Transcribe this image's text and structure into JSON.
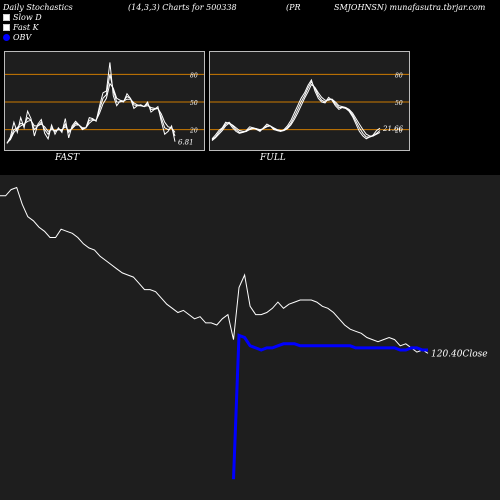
{
  "header": {
    "title": "Daily Stochastics",
    "params": "(14,3,3) Charts for 500338",
    "company": "(PR",
    "source": "SMJOHNSN) munafasutra.tbrjar.com"
  },
  "legend": {
    "slow": "Slow  D",
    "fast": "Fast K",
    "obv": "OBV"
  },
  "colors": {
    "background": "#000000",
    "panel_bg": "#1e1e1e",
    "grid": "#cc7a00",
    "stoch_line": "#ffffff",
    "obv_line": "#0000ff"
  },
  "chart_data": [
    {
      "type": "line",
      "label": "FAST",
      "ylim": [
        0,
        100
      ],
      "levels": [
        80,
        50,
        20
      ],
      "level_labels": [
        "80",
        "50",
        "20"
      ],
      "last_value_label": "6.81",
      "x": [
        0,
        1,
        2,
        3,
        4,
        5,
        6,
        7,
        8,
        9,
        10,
        11,
        12,
        13,
        14,
        15,
        16,
        17,
        18,
        19,
        20,
        21,
        22,
        23,
        24,
        25,
        26,
        27,
        28,
        29,
        30,
        31,
        32,
        33,
        34,
        35,
        36,
        37,
        38,
        39,
        40,
        41,
        42,
        43,
        44,
        45,
        46,
        47,
        48,
        49
      ],
      "series": [
        {
          "values": [
            5,
            12,
            28,
            17,
            33,
            22,
            40,
            32,
            13,
            26,
            31,
            16,
            10,
            25,
            15,
            22,
            17,
            32,
            11,
            24,
            29,
            25,
            20,
            22,
            33,
            32,
            29,
            46,
            60,
            62,
            93,
            57,
            46,
            51,
            50,
            59,
            54,
            43,
            46,
            47,
            45,
            50,
            39,
            42,
            45,
            29,
            15,
            18,
            24,
            6.81
          ]
        },
        {
          "values": [
            5,
            10,
            20,
            22,
            27,
            25,
            33,
            30,
            20,
            24,
            28,
            20,
            15,
            22,
            18,
            20,
            19,
            26,
            17,
            22,
            27,
            25,
            21,
            22,
            30,
            31,
            30,
            42,
            54,
            58,
            80,
            63,
            50,
            50,
            51,
            56,
            54,
            47,
            46,
            46,
            45,
            48,
            42,
            42,
            43,
            33,
            22,
            20,
            22,
            13
          ]
        },
        {
          "values": [
            6,
            9,
            17,
            21,
            24,
            26,
            29,
            30,
            24,
            24,
            26,
            23,
            18,
            20,
            19,
            20,
            20,
            23,
            19,
            21,
            25,
            25,
            22,
            22,
            27,
            30,
            30,
            38,
            48,
            54,
            70,
            65,
            54,
            52,
            51,
            53,
            53,
            49,
            47,
            46,
            45,
            46,
            44,
            43,
            43,
            37,
            28,
            23,
            22,
            17
          ]
        }
      ]
    },
    {
      "type": "line",
      "label": "FULL",
      "ylim": [
        0,
        100
      ],
      "levels": [
        80,
        50,
        20
      ],
      "level_labels": [
        "80",
        "50",
        "20"
      ],
      "last_value_label": "21.66",
      "x": [
        0,
        1,
        2,
        3,
        4,
        5,
        6,
        7,
        8,
        9,
        10,
        11,
        12,
        13,
        14,
        15,
        16,
        17,
        18,
        19,
        20,
        21,
        22,
        23,
        24,
        25,
        26,
        27,
        28,
        29,
        30,
        31,
        32,
        33,
        34,
        35,
        36,
        37,
        38,
        39,
        40,
        41,
        42,
        43,
        44,
        45,
        46,
        47,
        48,
        49
      ],
      "series": [
        {
          "values": [
            10,
            14,
            19,
            22,
            28,
            27,
            22,
            18,
            16,
            17,
            19,
            23,
            22,
            20,
            18,
            22,
            26,
            24,
            20,
            19,
            18,
            20,
            24,
            30,
            38,
            46,
            54,
            60,
            68,
            74,
            62,
            54,
            50,
            49,
            55,
            52,
            46,
            42,
            44,
            43,
            40,
            34,
            26,
            18,
            13,
            10,
            12,
            14,
            19,
            21.66
          ]
        },
        {
          "values": [
            9,
            12,
            17,
            21,
            26,
            28,
            24,
            20,
            17,
            17,
            18,
            21,
            22,
            21,
            19,
            21,
            24,
            24,
            21,
            19,
            18,
            19,
            22,
            27,
            34,
            42,
            50,
            57,
            65,
            72,
            65,
            57,
            52,
            50,
            53,
            53,
            48,
            44,
            44,
            43,
            41,
            36,
            29,
            22,
            16,
            12,
            12,
            13,
            16,
            19
          ]
        },
        {
          "values": [
            8,
            11,
            15,
            19,
            24,
            27,
            25,
            22,
            19,
            18,
            18,
            20,
            21,
            21,
            20,
            21,
            23,
            24,
            22,
            20,
            19,
            19,
            21,
            25,
            31,
            38,
            46,
            54,
            61,
            69,
            66,
            60,
            55,
            52,
            52,
            53,
            50,
            46,
            45,
            44,
            42,
            38,
            32,
            26,
            20,
            15,
            13,
            13,
            15,
            17
          ]
        }
      ]
    },
    {
      "type": "line",
      "label": "Close",
      "last_value_label": "120.40Close",
      "x": [
        0,
        1,
        2,
        3,
        4,
        5,
        6,
        7,
        8,
        9,
        10,
        11,
        12,
        13,
        14,
        15,
        16,
        17,
        18,
        19,
        20,
        21,
        22,
        23,
        24,
        25,
        26,
        27,
        28,
        29,
        30,
        31,
        32,
        33,
        34,
        35,
        36,
        37,
        38,
        39,
        40,
        41,
        42,
        43,
        44,
        45,
        46,
        47,
        48,
        49,
        50,
        51,
        52,
        53,
        54,
        55,
        56,
        57,
        58,
        59,
        60,
        61,
        62,
        63,
        64,
        65,
        66,
        67,
        68,
        69,
        70,
        71,
        72,
        73,
        74,
        75,
        76,
        77
      ],
      "series": [
        {
          "name": "Close",
          "values": [
            196,
            196,
            199,
            200,
            192,
            186,
            184,
            181,
            179,
            176,
            176,
            180,
            179,
            178,
            176,
            173,
            171,
            170,
            167,
            165,
            163,
            161,
            159,
            158,
            157,
            154,
            151,
            151,
            150,
            147,
            144,
            142,
            140,
            141,
            139,
            137,
            138,
            135,
            135,
            134,
            137,
            139,
            127,
            152,
            158,
            143,
            139,
            139,
            140,
            142,
            145,
            142,
            144,
            145,
            146,
            146,
            146,
            145,
            143,
            142,
            140,
            137,
            134,
            132,
            131,
            130,
            128,
            127,
            126,
            127,
            128,
            127,
            124,
            125,
            123,
            121,
            122,
            120.4
          ]
        },
        {
          "name": "OBV",
          "values": [
            null,
            null,
            null,
            null,
            null,
            null,
            null,
            null,
            null,
            null,
            null,
            null,
            null,
            null,
            null,
            null,
            null,
            null,
            null,
            null,
            null,
            null,
            null,
            null,
            null,
            null,
            null,
            null,
            null,
            null,
            null,
            null,
            null,
            null,
            null,
            null,
            null,
            null,
            null,
            null,
            null,
            null,
            60,
            129,
            128,
            124,
            123,
            122,
            123,
            123,
            124,
            125,
            125,
            125,
            124,
            124,
            124,
            124,
            124,
            124,
            124,
            124,
            124,
            124,
            123,
            123,
            123,
            123,
            123,
            123,
            123,
            123,
            122,
            122,
            123,
            123,
            122,
            122
          ]
        }
      ]
    }
  ]
}
